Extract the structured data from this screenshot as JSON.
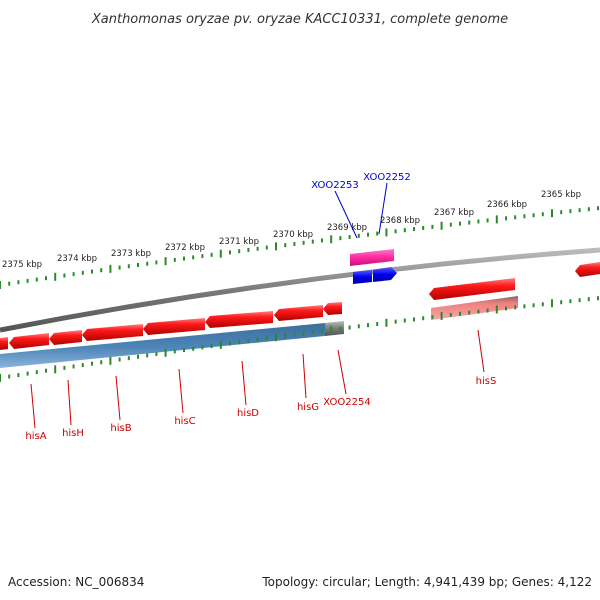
{
  "title": "Xanthomonas oryzae pv. oryzae KACC10331, complete genome",
  "footer": {
    "accession": "Accession: NC_006834",
    "summary": "Topology: circular; Length: 4,941,439 bp; Genes: 4,122"
  },
  "kbp_labels": [
    "2375 kbp",
    "2374 kbp",
    "2373 kbp",
    "2372 kbp",
    "2371 kbp",
    "2370 kbp",
    "2369 kbp",
    "2368 kbp",
    "2367 kbp",
    "2366 kbp",
    "2365 kbp"
  ],
  "gene_labels": [
    {
      "text": "XOO2253",
      "color": "#0000cc"
    },
    {
      "text": "XOO2252",
      "color": "#0000cc"
    },
    {
      "text": "hisA",
      "color": "#cc0000"
    },
    {
      "text": "hisH",
      "color": "#cc0000"
    },
    {
      "text": "hisB",
      "color": "#cc0000"
    },
    {
      "text": "hisC",
      "color": "#cc0000"
    },
    {
      "text": "hisD",
      "color": "#cc0000"
    },
    {
      "text": "hisG",
      "color": "#cc0000"
    },
    {
      "text": "XOO2254",
      "color": "#cc0000"
    },
    {
      "text": "hisS",
      "color": "#cc0000"
    }
  ],
  "colors": {
    "forward_gene": "#ff0000",
    "operon_block": "#4f86b8",
    "blue_gene": "#0000ee",
    "magenta_gene": "#ff2aa0",
    "pink_block": "#f08080",
    "backbone": "#888888",
    "ticks": "#2a8a2a"
  }
}
